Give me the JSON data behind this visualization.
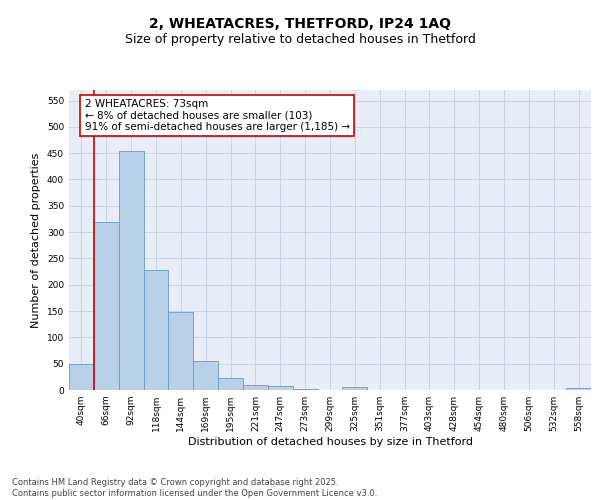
{
  "title_line1": "2, WHEATACRES, THETFORD, IP24 1AQ",
  "title_line2": "Size of property relative to detached houses in Thetford",
  "xlabel": "Distribution of detached houses by size in Thetford",
  "ylabel": "Number of detached properties",
  "categories": [
    "40sqm",
    "66sqm",
    "92sqm",
    "118sqm",
    "144sqm",
    "169sqm",
    "195sqm",
    "221sqm",
    "247sqm",
    "273sqm",
    "299sqm",
    "325sqm",
    "351sqm",
    "377sqm",
    "403sqm",
    "428sqm",
    "454sqm",
    "480sqm",
    "506sqm",
    "532sqm",
    "558sqm"
  ],
  "values": [
    50,
    320,
    455,
    228,
    148,
    55,
    22,
    10,
    8,
    1,
    0,
    5,
    0,
    0,
    0,
    0,
    0,
    0,
    0,
    0,
    3
  ],
  "bar_color": "#b8d0e8",
  "bar_edge_color": "#6699cc",
  "grid_color": "#c8d4e8",
  "background_color": "#e8eef8",
  "vline_color": "#cc0000",
  "annotation_box_color": "#cc0000",
  "ylim": [
    0,
    570
  ],
  "yticks": [
    0,
    50,
    100,
    150,
    200,
    250,
    300,
    350,
    400,
    450,
    500,
    550
  ],
  "footer_text": "Contains HM Land Registry data © Crown copyright and database right 2025.\nContains public sector information licensed under the Open Government Licence v3.0.",
  "title_fontsize": 10,
  "subtitle_fontsize": 9,
  "axis_label_fontsize": 8,
  "tick_fontsize": 6.5,
  "annotation_fontsize": 7.5,
  "footer_fontsize": 6
}
